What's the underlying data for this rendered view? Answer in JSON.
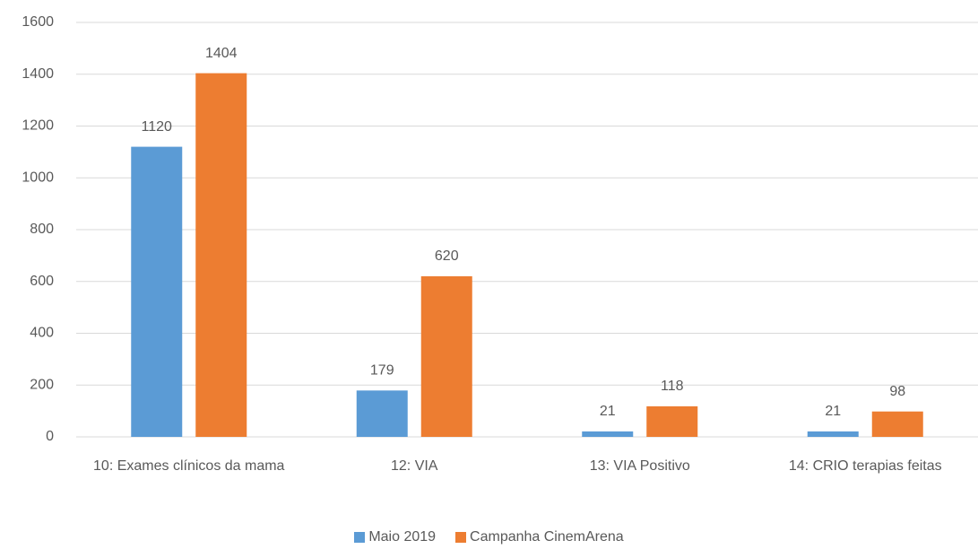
{
  "chart_data": {
    "type": "bar",
    "categories": [
      "10: Exames clínicos da mama",
      "12: VIA",
      "13: VIA Positivo",
      "14: CRIO terapias feitas"
    ],
    "series": [
      {
        "name": "Maio 2019",
        "color": "#5b9bd5",
        "values": [
          1120,
          179,
          21,
          21
        ]
      },
      {
        "name": "Campanha CinemArena",
        "color": "#ed7d31",
        "values": [
          1404,
          620,
          118,
          98
        ]
      }
    ],
    "ylim": [
      0,
      1600
    ],
    "yticks": [
      0,
      200,
      400,
      600,
      800,
      1000,
      1200,
      1400,
      1600
    ],
    "grid": true,
    "legend": "bottom"
  }
}
